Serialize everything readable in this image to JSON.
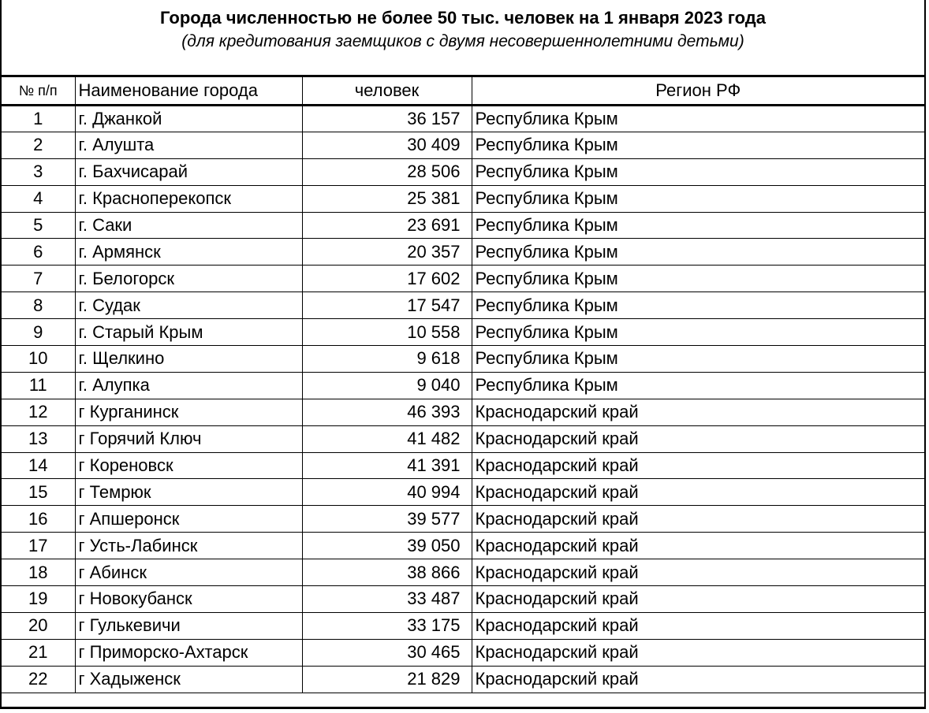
{
  "title": "Города численностью не более 50 тыс. человек на 1 января 2023 года",
  "subtitle": "(для кредитования заемщиков с двумя несовершеннолетними детьми)",
  "headers": [
    "№ п/п",
    "Наименование города",
    "человек",
    "Регион РФ"
  ],
  "rows": [
    [
      "1",
      "г. Джанкой",
      "36 157",
      "Республика Крым"
    ],
    [
      "2",
      "г. Алушта",
      "30 409",
      "Республика Крым"
    ],
    [
      "3",
      "г. Бахчисарай",
      "28 506",
      "Республика Крым"
    ],
    [
      "4",
      "г. Красноперекопск",
      "25 381",
      "Республика Крым"
    ],
    [
      "5",
      "г. Саки",
      "23 691",
      "Республика Крым"
    ],
    [
      "6",
      "г. Армянск",
      "20 357",
      "Республика Крым"
    ],
    [
      "7",
      "г. Белогорск",
      "17 602",
      "Республика Крым"
    ],
    [
      "8",
      "г. Судак",
      "17 547",
      "Республика Крым"
    ],
    [
      "9",
      "г. Старый Крым",
      "10 558",
      "Республика Крым"
    ],
    [
      "10",
      "г. Щелкино",
      "9 618",
      "Республика Крым"
    ],
    [
      "11",
      "г. Алупка",
      "9 040",
      "Республика Крым"
    ],
    [
      "12",
      "г Курганинск",
      "46 393",
      "Краснодарский край"
    ],
    [
      "13",
      "г Горячий Ключ",
      "41 482",
      "Краснодарский край"
    ],
    [
      "14",
      "г Кореновск",
      "41 391",
      "Краснодарский край"
    ],
    [
      "15",
      "г Темрюк",
      "40 994",
      "Краснодарский край"
    ],
    [
      "16",
      "г Апшеронск",
      "39 577",
      "Краснодарский край"
    ],
    [
      "17",
      "г Усть-Лабинск",
      "39 050",
      "Краснодарский край"
    ],
    [
      "18",
      "г Абинск",
      "38 866",
      "Краснодарский край"
    ],
    [
      "19",
      "г Новокубанск",
      "33 487",
      "Краснодарский край"
    ],
    [
      "20",
      "г Гулькевичи",
      "33 175",
      "Краснодарский край"
    ],
    [
      "21",
      "г Приморско-Ахтарск",
      "30 465",
      "Краснодарский край"
    ],
    [
      "22",
      "г Хадыженск",
      "21 829",
      "Краснодарский край"
    ]
  ]
}
